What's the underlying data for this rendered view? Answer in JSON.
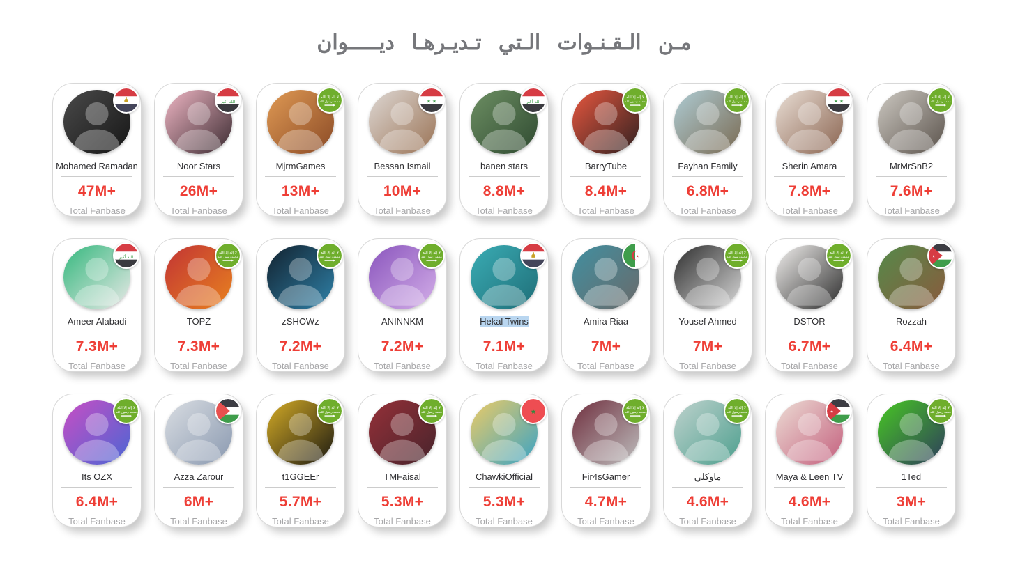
{
  "page": {
    "title": "مـن الـقـنـوات الـتي تـديـرهـا ديـــــوان"
  },
  "labels": {
    "total_fanbase": "Total Fanbase"
  },
  "colors": {
    "title_text": "#76777b",
    "channel_name_text": "#2e2e31",
    "fanbase_accent": "#ee3e36",
    "fanbase_label_text": "#a7a7a9",
    "selection_highlight": "#b9d6f0",
    "card_border": "#d8d8d8"
  },
  "channels": [
    {
      "name": "Mohamed Ramadan",
      "fanbase": "47M+",
      "flag": "egypt",
      "avatar": [
        "#4a4a4a",
        "#161616"
      ],
      "selected": false
    },
    {
      "name": "Noor Stars",
      "fanbase": "26M+",
      "flag": "iraq",
      "avatar": [
        "#efb6c4",
        "#3a2a30"
      ],
      "selected": false
    },
    {
      "name": "MjrmGames",
      "fanbase": "13M+",
      "flag": "saudi",
      "avatar": [
        "#e09a54",
        "#8a4a26"
      ],
      "selected": false
    },
    {
      "name": "Bessan Ismail",
      "fanbase": "10M+",
      "flag": "syria",
      "avatar": [
        "#ded8d4",
        "#9a7355"
      ],
      "selected": false
    },
    {
      "name": "banen stars",
      "fanbase": "8.8M+",
      "flag": "iraq",
      "avatar": [
        "#6d8f63",
        "#2f4a31"
      ],
      "selected": false
    },
    {
      "name": "BarryTube",
      "fanbase": "8.4M+",
      "flag": "saudi",
      "avatar": [
        "#e8573f",
        "#2e2020"
      ],
      "selected": false
    },
    {
      "name": "Fayhan Family",
      "fanbase": "6.8M+",
      "flag": "saudi",
      "avatar": [
        "#aeccd4",
        "#7a6a52"
      ],
      "selected": false
    },
    {
      "name": "Sherin Amara",
      "fanbase": "7.8M+",
      "flag": "syria",
      "avatar": [
        "#eadfd6",
        "#8a6450"
      ],
      "selected": false
    },
    {
      "name": "MrMrSnB2",
      "fanbase": "7.6M+",
      "flag": "saudi",
      "avatar": [
        "#cdc9c2",
        "#5a524b"
      ],
      "selected": false
    },
    {
      "name": "Ameer Alabadi",
      "fanbase": "7.3M+",
      "flag": "iraq",
      "avatar": [
        "#35b87e",
        "#e9e9e7"
      ],
      "selected": false
    },
    {
      "name": "TOPZ",
      "fanbase": "7.3M+",
      "flag": "saudi",
      "avatar": [
        "#c23434",
        "#e8821f"
      ],
      "selected": false
    },
    {
      "name": "zSHOWz",
      "fanbase": "7.2M+",
      "flag": "saudi",
      "avatar": [
        "#12222f",
        "#2f81a8"
      ],
      "selected": false
    },
    {
      "name": "ANINNKM",
      "fanbase": "7.2M+",
      "flag": "saudi",
      "avatar": [
        "#8a55bd",
        "#d3aee8"
      ],
      "selected": false
    },
    {
      "name": "Hekal Twins",
      "fanbase": "7.1M+",
      "flag": "egypt",
      "avatar": [
        "#3aacb4",
        "#1f6e78"
      ],
      "selected": true
    },
    {
      "name": "Amira Riaa",
      "fanbase": "7M+",
      "flag": "algeria",
      "avatar": [
        "#418fa0",
        "#6a6a6a"
      ],
      "selected": false
    },
    {
      "name": "Yousef Ahmed",
      "fanbase": "7M+",
      "flag": "saudi",
      "avatar": [
        "#2e2e2e",
        "#d9d9d9"
      ],
      "selected": false
    },
    {
      "name": "DSTOR",
      "fanbase": "6.7M+",
      "flag": "saudi",
      "avatar": [
        "#f2f0ee",
        "#2b2b2b"
      ],
      "selected": false
    },
    {
      "name": "Rozzah",
      "fanbase": "6.4M+",
      "flag": "jordan",
      "avatar": [
        "#558a4a",
        "#8a5a3d"
      ],
      "selected": false
    },
    {
      "name": "Its OZX",
      "fanbase": "6.4M+",
      "flag": "saudi",
      "avatar": [
        "#c84ec4",
        "#4a66d4"
      ],
      "selected": false
    },
    {
      "name": "Azza Zarour",
      "fanbase": "6M+",
      "flag": "palestine",
      "avatar": [
        "#d9dde2",
        "#8a99b0"
      ],
      "selected": false
    },
    {
      "name": "t1GGEEr",
      "fanbase": "5.7M+",
      "flag": "saudi",
      "avatar": [
        "#d4ab26",
        "#1c1a12"
      ],
      "selected": false
    },
    {
      "name": "TMFaisal",
      "fanbase": "5.3M+",
      "flag": "saudi",
      "avatar": [
        "#953038",
        "#47242c"
      ],
      "selected": false
    },
    {
      "name": "ChawkiOfficial",
      "fanbase": "5.3M+",
      "flag": "morocco",
      "avatar": [
        "#eccb66",
        "#3aa3c4"
      ],
      "selected": false
    },
    {
      "name": "Fir4sGamer",
      "fanbase": "4.7M+",
      "flag": "saudi",
      "avatar": [
        "#70303f",
        "#bdbdbd"
      ],
      "selected": false
    },
    {
      "name": "ماوكلي",
      "fanbase": "4.6M+",
      "flag": "saudi",
      "avatar": [
        "#bed2cd",
        "#4d9f8e"
      ],
      "selected": false
    },
    {
      "name": "Maya & Leen TV",
      "fanbase": "4.6M+",
      "flag": "jordan",
      "avatar": [
        "#ecdcd4",
        "#c4607e"
      ],
      "selected": false
    },
    {
      "name": "1Ted",
      "fanbase": "3M+",
      "flag": "saudi",
      "avatar": [
        "#47c723",
        "#2e3d5c"
      ],
      "selected": false
    }
  ]
}
